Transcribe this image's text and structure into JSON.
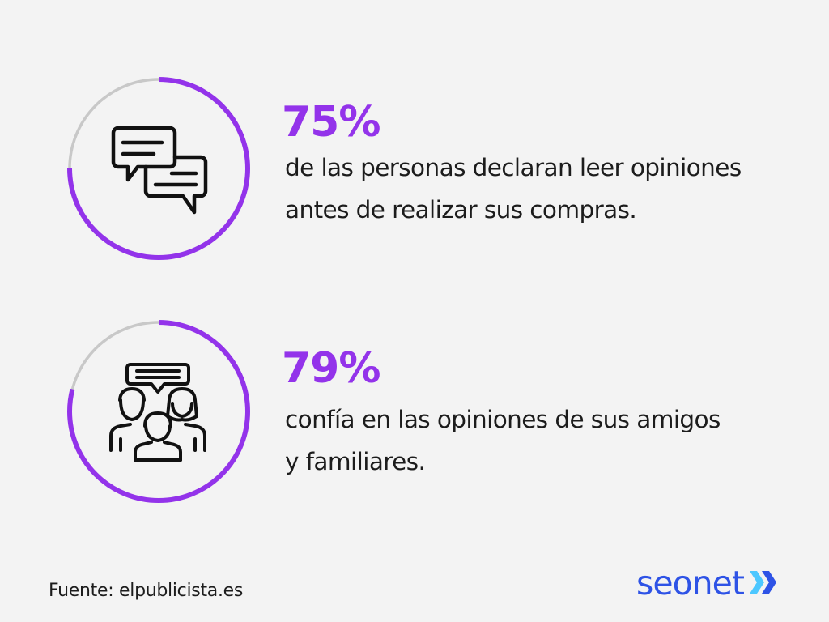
{
  "stats": [
    {
      "value": "75%",
      "percent": 75,
      "icon": "chat-bubbles-icon",
      "text_lines": [
        "de las personas declaran leer opiniones",
        "antes de realizar sus compras."
      ]
    },
    {
      "value": "79%",
      "percent": 79,
      "icon": "family-group-icon",
      "text_lines": [
        "confía en las opiniones de sus amigos",
        "y familiares."
      ]
    }
  ],
  "source": "Fuente: elpublicista.es",
  "logo": {
    "text": "seonet",
    "icon": "double-chevron-icon"
  },
  "colors": {
    "accent": "#9333ea",
    "track": "#c8c8c8",
    "background": "#f3f3f3",
    "text": "#1c1c1c",
    "logo_text": "#2e53e6",
    "logo_chevron_light": "#4cc7ff",
    "logo_chevron_dark": "#2e53e6"
  }
}
